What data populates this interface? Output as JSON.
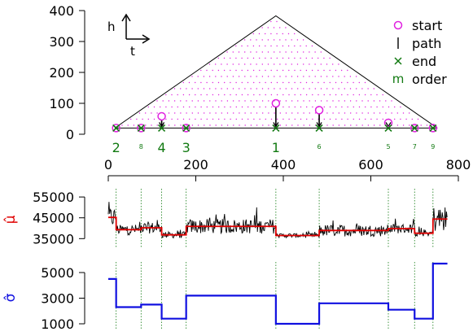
{
  "chart_data": [
    {
      "type": "scatter",
      "panel": "changepoint-tree",
      "ylim": [
        0,
        400
      ],
      "yticks": [
        0,
        100,
        200,
        300,
        400
      ],
      "xlim": [
        0,
        800
      ],
      "xticks": [
        0,
        200,
        400,
        600,
        800
      ],
      "axis_annotation": {
        "h_label": "h",
        "t_label": "t"
      },
      "triangle": {
        "apex": {
          "x": 383,
          "y": 383
        },
        "left_base": {
          "x": 15,
          "y": 20
        },
        "right_base": {
          "x": 752,
          "y": 20
        }
      },
      "baseline_y": 20,
      "points": [
        {
          "x": 18,
          "start": 20,
          "end": 20,
          "order": "2",
          "big": true
        },
        {
          "x": 75,
          "start": 20,
          "end": 20,
          "order": "8",
          "big": false
        },
        {
          "x": 122,
          "start": 58,
          "end": 20,
          "order": "4",
          "big": true
        },
        {
          "x": 178,
          "start": 20,
          "end": 20,
          "order": "3",
          "big": true
        },
        {
          "x": 383,
          "start": 100,
          "end": 20,
          "order": "1",
          "big": true
        },
        {
          "x": 482,
          "start": 78,
          "end": 20,
          "order": "6",
          "big": false
        },
        {
          "x": 640,
          "start": 37,
          "end": 20,
          "order": "5",
          "big": false
        },
        {
          "x": 700,
          "start": 20,
          "end": 20,
          "order": "7",
          "big": false
        },
        {
          "x": 742,
          "start": 20,
          "end": 20,
          "order": "9",
          "big": false
        }
      ],
      "legend": {
        "placement": "top-right",
        "entries": [
          {
            "symbol": "o",
            "label": "start",
            "color": "#e020e0"
          },
          {
            "symbol": "|",
            "label": "path",
            "color": "#000000"
          },
          {
            "symbol": "×",
            "label": "end",
            "color": "#127a12"
          },
          {
            "symbol": "m",
            "label": "order",
            "color": "#127a12"
          }
        ]
      },
      "colors": {
        "start": "#e020e0",
        "end": "#127a12",
        "order": "#127a12",
        "dots": "#e020e0"
      }
    },
    {
      "type": "line",
      "panel": "mean",
      "ylabel": "μ̂",
      "ylabel_color": "#e00000",
      "ylim": [
        32000,
        57000
      ],
      "yticks": [
        35000,
        45000,
        55000
      ],
      "step_color": "#e00000",
      "signal_color": "#000000",
      "segments": [
        {
          "x0": 0,
          "x1": 18,
          "y": 45200
        },
        {
          "x0": 18,
          "x1": 75,
          "y": 39300
        },
        {
          "x0": 75,
          "x1": 122,
          "y": 40200
        },
        {
          "x0": 122,
          "x1": 178,
          "y": 36800
        },
        {
          "x0": 178,
          "x1": 383,
          "y": 40900
        },
        {
          "x0": 383,
          "x1": 482,
          "y": 36500
        },
        {
          "x0": 482,
          "x1": 640,
          "y": 38900
        },
        {
          "x0": 640,
          "x1": 700,
          "y": 39800
        },
        {
          "x0": 700,
          "x1": 742,
          "y": 37600
        },
        {
          "x0": 742,
          "x1": 775,
          "y": 44400
        }
      ]
    },
    {
      "type": "line",
      "panel": "std",
      "ylabel": "σ̂",
      "ylabel_color": "#1010e0",
      "ylim": [
        800,
        6000
      ],
      "yticks": [
        1000,
        3000,
        5000
      ],
      "step_color": "#1010e0",
      "segments": [
        {
          "x0": 0,
          "x1": 18,
          "y": 4500
        },
        {
          "x0": 18,
          "x1": 75,
          "y": 2300
        },
        {
          "x0": 75,
          "x1": 122,
          "y": 2500
        },
        {
          "x0": 122,
          "x1": 178,
          "y": 1400
        },
        {
          "x0": 178,
          "x1": 383,
          "y": 3200
        },
        {
          "x0": 383,
          "x1": 482,
          "y": 1000
        },
        {
          "x0": 482,
          "x1": 640,
          "y": 2600
        },
        {
          "x0": 640,
          "x1": 700,
          "y": 2100
        },
        {
          "x0": 700,
          "x1": 742,
          "y": 1400
        },
        {
          "x0": 742,
          "x1": 775,
          "y": 5700
        }
      ]
    }
  ]
}
